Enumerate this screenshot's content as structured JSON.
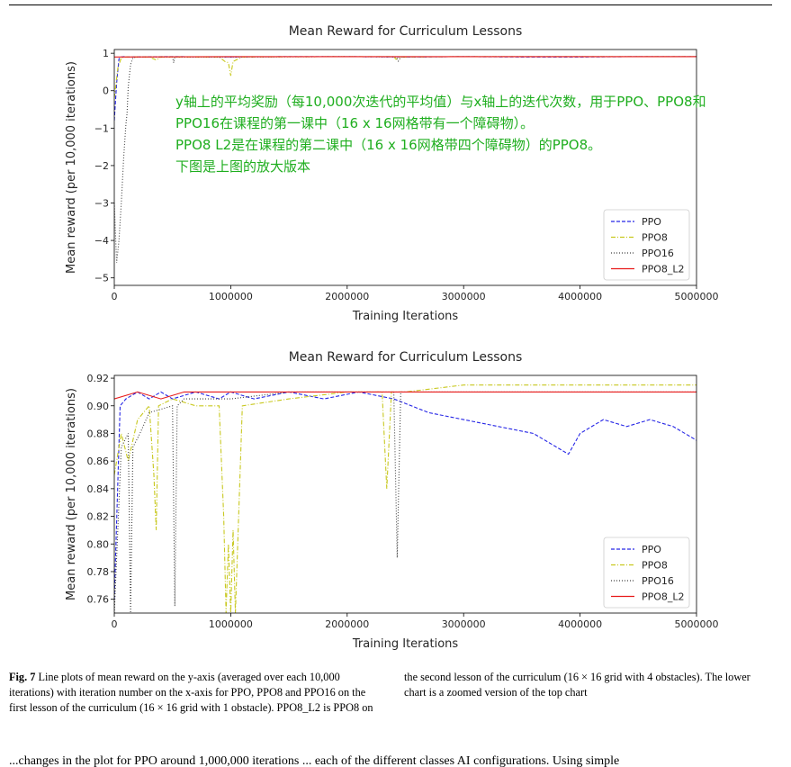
{
  "annotation_lines": [
    "y轴上的平均奖励（每10,000次迭代的平均值）与x轴上的迭代次数，用于PPO、PPO8和",
    "PPO16在课程的第一课中（16 x 16网格带有一个障碍物）。",
    "PPO8 L2是在课程的第二课中（16 x 16网格带四个障碍物）的PPO8。",
    "下图是上图的放大版本"
  ],
  "caption": {
    "label": "Fig. 7",
    "text": "Line plots of mean reward on the y-axis (averaged over each 10,000 iterations) with iteration number on the x-axis for PPO, PPO8 and PPO16 on the first lesson of the curriculum (16 × 16 grid with 1 obstacle). PPO8_L2 is PPO8 on the second lesson of the curriculum (16 × 16 grid with 4 obstacles). The lower chart is a zoomed version of the top chart"
  },
  "footer_text": "...changes in the plot for PPO around 1,000,000 iterations ... each of the different classes AI configurations. Using simple",
  "colors": {
    "PPO": "#2626e6",
    "PPO8": "#c8c81e",
    "PPO16": "#404040",
    "PPO8_L2": "#e81a1a",
    "annotation": "#1fae1f"
  },
  "chart_data": [
    {
      "type": "line",
      "title": "Mean Reward for Curriculum Lessons",
      "xlabel": "Training Iterations",
      "ylabel": "Mean reward (per 10,000 iterations)",
      "xlim": [
        0,
        5000000
      ],
      "ylim": [
        -5.2,
        1.1
      ],
      "xticks": [
        0,
        1000000,
        2000000,
        3000000,
        4000000,
        5000000
      ],
      "xtick_labels": [
        "0",
        "1000000",
        "2000000",
        "3000000",
        "4000000",
        "5000000"
      ],
      "yticks": [
        1,
        0,
        -1,
        -2,
        -3,
        -4,
        -5
      ],
      "ytick_labels": [
        "1",
        "0",
        "−1",
        "−2",
        "−3",
        "−4",
        "−5"
      ],
      "legend_position": "lower-right",
      "series": [
        {
          "name": "PPO",
          "style": "dashed",
          "x": [
            0,
            20000,
            40000,
            60000,
            80000,
            100000,
            500000,
            1000000,
            1500000,
            2000000,
            2500000,
            3000000,
            3500000,
            4000000,
            4500000,
            5000000
          ],
          "y": [
            -0.8,
            0.2,
            0.85,
            0.9,
            0.91,
            0.9,
            0.91,
            0.9,
            0.91,
            0.91,
            0.9,
            0.91,
            0.9,
            0.9,
            0.91,
            0.91
          ]
        },
        {
          "name": "PPO8",
          "style": "dashdot",
          "x": [
            0,
            30000,
            60000,
            100000,
            300000,
            360000,
            400000,
            900000,
            950000,
            980000,
            1000000,
            1020000,
            1100000,
            2000000,
            2400000,
            2420000,
            2460000,
            3000000,
            4000000,
            5000000
          ],
          "y": [
            -0.2,
            0.6,
            0.88,
            0.9,
            0.9,
            0.82,
            0.9,
            0.9,
            0.78,
            0.75,
            0.4,
            0.78,
            0.9,
            0.91,
            0.91,
            0.84,
            0.9,
            0.91,
            0.91,
            0.91
          ]
        },
        {
          "name": "PPO16",
          "style": "dotted",
          "x": [
            0,
            20000,
            40000,
            60000,
            80000,
            100000,
            110000,
            120000,
            140000,
            160000,
            200000,
            500000,
            510000,
            520000,
            1000000,
            2000000,
            2420000,
            2440000,
            2460000,
            3000000,
            4000000,
            5000000
          ],
          "y": [
            -3.0,
            -4.6,
            -4.0,
            -3.0,
            -1.8,
            -0.9,
            -0.6,
            0.1,
            0.7,
            0.88,
            0.9,
            0.9,
            0.75,
            0.9,
            0.9,
            0.91,
            0.9,
            0.79,
            0.9,
            0.91,
            0.91,
            0.91
          ]
        },
        {
          "name": "PPO8_L2",
          "style": "solid",
          "x": [
            0,
            1000000,
            2000000,
            3000000,
            4000000,
            5000000
          ],
          "y": [
            0.9,
            0.91,
            0.91,
            0.91,
            0.91,
            0.91
          ]
        }
      ]
    },
    {
      "type": "line",
      "title": "Mean Reward for Curriculum Lessons",
      "xlabel": "Training Iterations",
      "ylabel": "Mean reward (per 10,000 iterations)",
      "xlim": [
        0,
        5000000
      ],
      "ylim": [
        0.75,
        0.922
      ],
      "xticks": [
        0,
        1000000,
        2000000,
        3000000,
        4000000,
        5000000
      ],
      "xtick_labels": [
        "0",
        "1000000",
        "2000000",
        "3000000",
        "4000000",
        "5000000"
      ],
      "yticks": [
        0.92,
        0.9,
        0.88,
        0.86,
        0.84,
        0.82,
        0.8,
        0.78,
        0.76
      ],
      "ytick_labels": [
        "0.92",
        "0.90",
        "0.88",
        "0.86",
        "0.84",
        "0.82",
        "0.80",
        "0.78",
        "0.76"
      ],
      "legend_position": "lower-right",
      "series": [
        {
          "name": "PPO",
          "style": "dashed",
          "x": [
            0,
            50000,
            100000,
            200000,
            300000,
            400000,
            500000,
            700000,
            900000,
            1000000,
            1200000,
            1500000,
            1800000,
            2100000,
            2400000,
            2700000,
            3000000,
            3300000,
            3600000,
            3800000,
            3900000,
            4000000,
            4200000,
            4400000,
            4600000,
            4800000,
            5000000
          ],
          "y": [
            0.76,
            0.9,
            0.905,
            0.91,
            0.905,
            0.91,
            0.905,
            0.91,
            0.905,
            0.91,
            0.905,
            0.91,
            0.905,
            0.91,
            0.905,
            0.895,
            0.89,
            0.885,
            0.88,
            0.87,
            0.865,
            0.88,
            0.89,
            0.885,
            0.89,
            0.885,
            0.875
          ]
        },
        {
          "name": "PPO8",
          "style": "dashdot",
          "x": [
            0,
            60000,
            120000,
            200000,
            300000,
            340000,
            360000,
            380000,
            500000,
            700000,
            900000,
            940000,
            960000,
            980000,
            1000000,
            1020000,
            1040000,
            1100000,
            1500000,
            2000000,
            2300000,
            2340000,
            2380000,
            2500000,
            3000000,
            3500000,
            4000000,
            4500000,
            5000000
          ],
          "y": [
            0.85,
            0.88,
            0.86,
            0.89,
            0.9,
            0.85,
            0.81,
            0.9,
            0.905,
            0.9,
            0.9,
            0.82,
            0.75,
            0.8,
            0.75,
            0.81,
            0.75,
            0.9,
            0.905,
            0.91,
            0.91,
            0.84,
            0.91,
            0.91,
            0.915,
            0.915,
            0.915,
            0.915,
            0.915
          ]
        },
        {
          "name": "PPO16",
          "style": "dotted",
          "x": [
            0,
            60000,
            120000,
            140000,
            160000,
            220000,
            300000,
            500000,
            520000,
            540000,
            600000,
            1000000,
            1500000,
            2000000,
            2400000,
            2430000,
            2460000,
            2500000,
            3000000,
            3500000,
            4000000,
            4500000,
            5000000
          ],
          "y": [
            0.75,
            0.87,
            0.88,
            0.75,
            0.87,
            0.88,
            0.895,
            0.9,
            0.755,
            0.9,
            0.905,
            0.905,
            0.91,
            0.91,
            0.91,
            0.79,
            0.91,
            0.91,
            0.91,
            0.91,
            0.91,
            0.91,
            0.91
          ]
        },
        {
          "name": "PPO8_L2",
          "style": "solid",
          "x": [
            0,
            200000,
            400000,
            600000,
            800000,
            1000000,
            1500000,
            2000000,
            2500000,
            3000000,
            3500000,
            4000000,
            4500000,
            5000000
          ],
          "y": [
            0.905,
            0.91,
            0.905,
            0.91,
            0.91,
            0.91,
            0.91,
            0.91,
            0.91,
            0.91,
            0.91,
            0.91,
            0.91,
            0.91
          ]
        }
      ]
    }
  ]
}
